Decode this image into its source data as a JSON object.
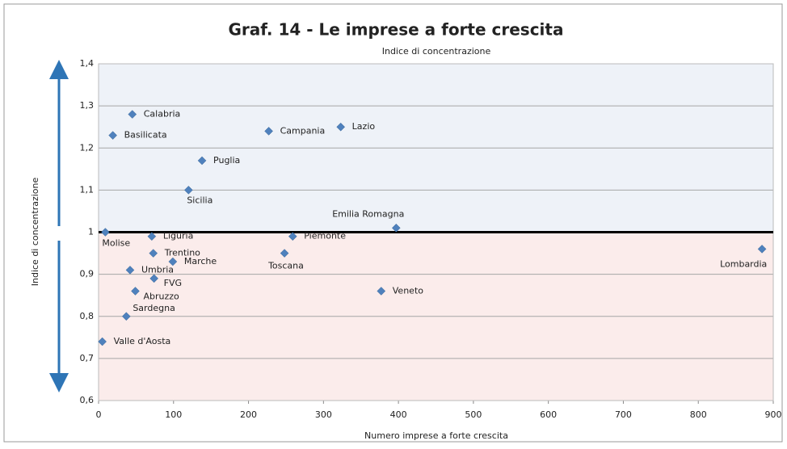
{
  "chart_data": {
    "type": "scatter",
    "title": "Graf. 14 - Le imprese a forte crescita",
    "subtitle": "Indice di concentrazione",
    "x_label": "Numero imprese a forte crescita",
    "y_label": "Indice di concentrazione",
    "color": "#4f81bd",
    "threshold": 1,
    "labels": [
      "Calabria",
      "Basilicata",
      "Campania",
      "Lazio",
      "Puglia",
      "Sicilia",
      "Emilia Romagna",
      "Molise",
      "Liguria",
      "Piemonte",
      "Trentino",
      "Toscana",
      "Marche",
      "Umbria",
      "FVG",
      "Abruzzo",
      "Veneto",
      "Sardegna",
      "Valle d'Aosta",
      "Lombardia"
    ],
    "x": [
      45,
      19,
      227,
      323,
      138,
      120,
      397,
      9,
      71,
      259,
      73,
      248,
      99,
      42,
      74,
      49,
      377,
      37,
      5,
      885
    ],
    "values": [
      1.28,
      1.23,
      1.24,
      1.25,
      1.17,
      1.1,
      1.01,
      1.0,
      0.99,
      0.99,
      0.95,
      0.95,
      0.93,
      0.91,
      0.89,
      0.86,
      0.86,
      0.8,
      0.74,
      0.96
    ],
    "xlim": [
      0,
      900
    ],
    "xticks": [
      0,
      100,
      200,
      300,
      400,
      500,
      600,
      700,
      800,
      900
    ],
    "ylim": [
      0.6,
      1.4
    ],
    "yticks": [
      {
        "value": 0.6,
        "label": "0,6"
      },
      {
        "value": 0.7,
        "label": "0,7"
      },
      {
        "value": 0.8,
        "label": "0,8"
      },
      {
        "value": 0.9,
        "label": "0,9"
      },
      1,
      {
        "value": 1.1,
        "label": "1,1"
      },
      {
        "value": 1.2,
        "label": "1,2"
      },
      {
        "value": 1.3,
        "label": "1,3"
      },
      {
        "value": 1.4,
        "label": "1,4"
      }
    ],
    "grid": true
  }
}
